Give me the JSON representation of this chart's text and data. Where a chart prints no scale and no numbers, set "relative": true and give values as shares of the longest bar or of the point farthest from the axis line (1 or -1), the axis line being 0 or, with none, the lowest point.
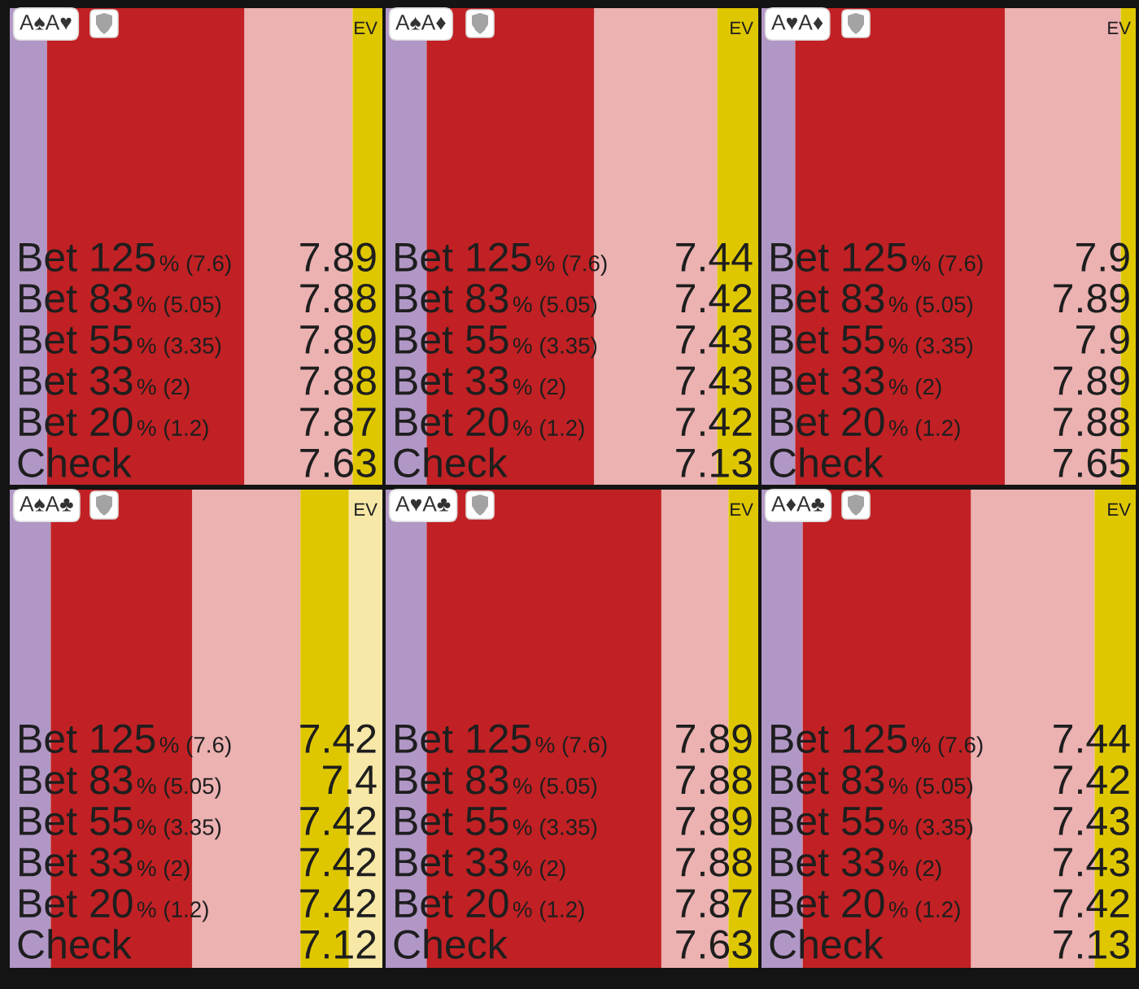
{
  "chart_data": [
    {
      "type": "bar",
      "orientation": "horizontal",
      "stacked": true,
      "relative": true,
      "categories": [
        null
      ],
      "title": "A♠A♥",
      "series": [
        {
          "color": "#b197c6",
          "values": [
            0.1
          ]
        },
        {
          "color": "#c12124",
          "values": [
            0.53
          ]
        },
        {
          "color": "#ecb1b1",
          "values": [
            0.29
          ]
        },
        {
          "color": "#dfc700",
          "values": [
            0.08
          ]
        }
      ],
      "annotations": [
        "EV",
        "Bet 125",
        "% (7.6)",
        "7.89",
        "Bet 83",
        "% (5.05)",
        "7.88",
        "Bet 55",
        "% (3.35)",
        "7.89",
        "Bet 33",
        "% (2)",
        "7.88",
        "Bet 20",
        "% (1.2)",
        "7.87",
        "Check",
        "7.63"
      ]
    },
    {
      "type": "bar",
      "orientation": "horizontal",
      "stacked": true,
      "relative": true,
      "categories": [
        null
      ],
      "title": "A♠A♦",
      "series": [
        {
          "color": "#b197c6",
          "values": [
            0.11
          ]
        },
        {
          "color": "#c12124",
          "values": [
            0.45
          ]
        },
        {
          "color": "#ecb1b1",
          "values": [
            0.33
          ]
        },
        {
          "color": "#dfc700",
          "values": [
            0.11
          ]
        }
      ],
      "annotations": [
        "EV",
        "Bet 125",
        "% (7.6)",
        "7.44",
        "Bet 83",
        "% (5.05)",
        "7.42",
        "Bet 55",
        "% (3.35)",
        "7.43",
        "Bet 33",
        "% (2)",
        "7.43",
        "Bet 20",
        "% (1.2)",
        "7.42",
        "Check",
        "7.13"
      ]
    },
    {
      "type": "bar",
      "orientation": "horizontal",
      "stacked": true,
      "relative": true,
      "categories": [
        null
      ],
      "title": "A♥A♦",
      "series": [
        {
          "color": "#b197c6",
          "values": [
            0.09
          ]
        },
        {
          "color": "#c12124",
          "values": [
            0.56
          ]
        },
        {
          "color": "#ecb1b1",
          "values": [
            0.31
          ]
        },
        {
          "color": "#dfc700",
          "values": [
            0.04
          ]
        }
      ],
      "annotations": [
        "EV",
        "Bet 125",
        "% (7.6)",
        "7.9",
        "Bet 83",
        "% (5.05)",
        "7.89",
        "Bet 55",
        "% (3.35)",
        "7.9",
        "Bet 33",
        "% (2)",
        "7.89",
        "Bet 20",
        "% (1.2)",
        "7.88",
        "Check",
        "7.65"
      ]
    },
    {
      "type": "bar",
      "orientation": "horizontal",
      "stacked": true,
      "relative": true,
      "categories": [
        null
      ],
      "title": "A♠A♣",
      "series": [
        {
          "color": "#b197c6",
          "values": [
            0.11
          ]
        },
        {
          "color": "#c12124",
          "values": [
            0.38
          ]
        },
        {
          "color": "#ecb1b1",
          "values": [
            0.29
          ]
        },
        {
          "color": "#dfc700",
          "values": [
            0.13
          ]
        },
        {
          "color": "#f8e8a8",
          "values": [
            0.09
          ]
        }
      ],
      "annotations": [
        "EV",
        "Bet 125",
        "% (7.6)",
        "7.42",
        "Bet 83",
        "% (5.05)",
        "7.4",
        "Bet 55",
        "% (3.35)",
        "7.42",
        "Bet 33",
        "% (2)",
        "7.42",
        "Bet 20",
        "% (1.2)",
        "7.42",
        "Check",
        "7.12"
      ]
    },
    {
      "type": "bar",
      "orientation": "horizontal",
      "stacked": true,
      "relative": true,
      "categories": [
        null
      ],
      "title": "A♥A♣",
      "series": [
        {
          "color": "#b197c6",
          "values": [
            0.11
          ]
        },
        {
          "color": "#c12124",
          "values": [
            0.63
          ]
        },
        {
          "color": "#ecb1b1",
          "values": [
            0.18
          ]
        },
        {
          "color": "#dfc700",
          "values": [
            0.08
          ]
        }
      ],
      "annotations": [
        "EV",
        "Bet 125",
        "% (7.6)",
        "7.89",
        "Bet 83",
        "% (5.05)",
        "7.88",
        "Bet 55",
        "% (3.35)",
        "7.89",
        "Bet 33",
        "% (2)",
        "7.88",
        "Bet 20",
        "% (1.2)",
        "7.87",
        "Check",
        "7.63"
      ]
    },
    {
      "type": "bar",
      "orientation": "horizontal",
      "stacked": true,
      "relative": true,
      "categories": [
        null
      ],
      "title": "A♦A♣",
      "series": [
        {
          "color": "#b197c6",
          "values": [
            0.11
          ]
        },
        {
          "color": "#c12124",
          "values": [
            0.45
          ]
        },
        {
          "color": "#ecb1b1",
          "values": [
            0.33
          ]
        },
        {
          "color": "#dfc700",
          "values": [
            0.11
          ]
        }
      ],
      "annotations": [
        "EV",
        "Bet 125",
        "% (7.6)",
        "7.44",
        "Bet 83",
        "% (5.05)",
        "7.42",
        "Bet 55",
        "% (3.35)",
        "7.43",
        "Bet 33",
        "% (2)",
        "7.43",
        "Bet 20",
        "% (1.2)",
        "7.42",
        "Check",
        "7.13"
      ]
    }
  ]
}
